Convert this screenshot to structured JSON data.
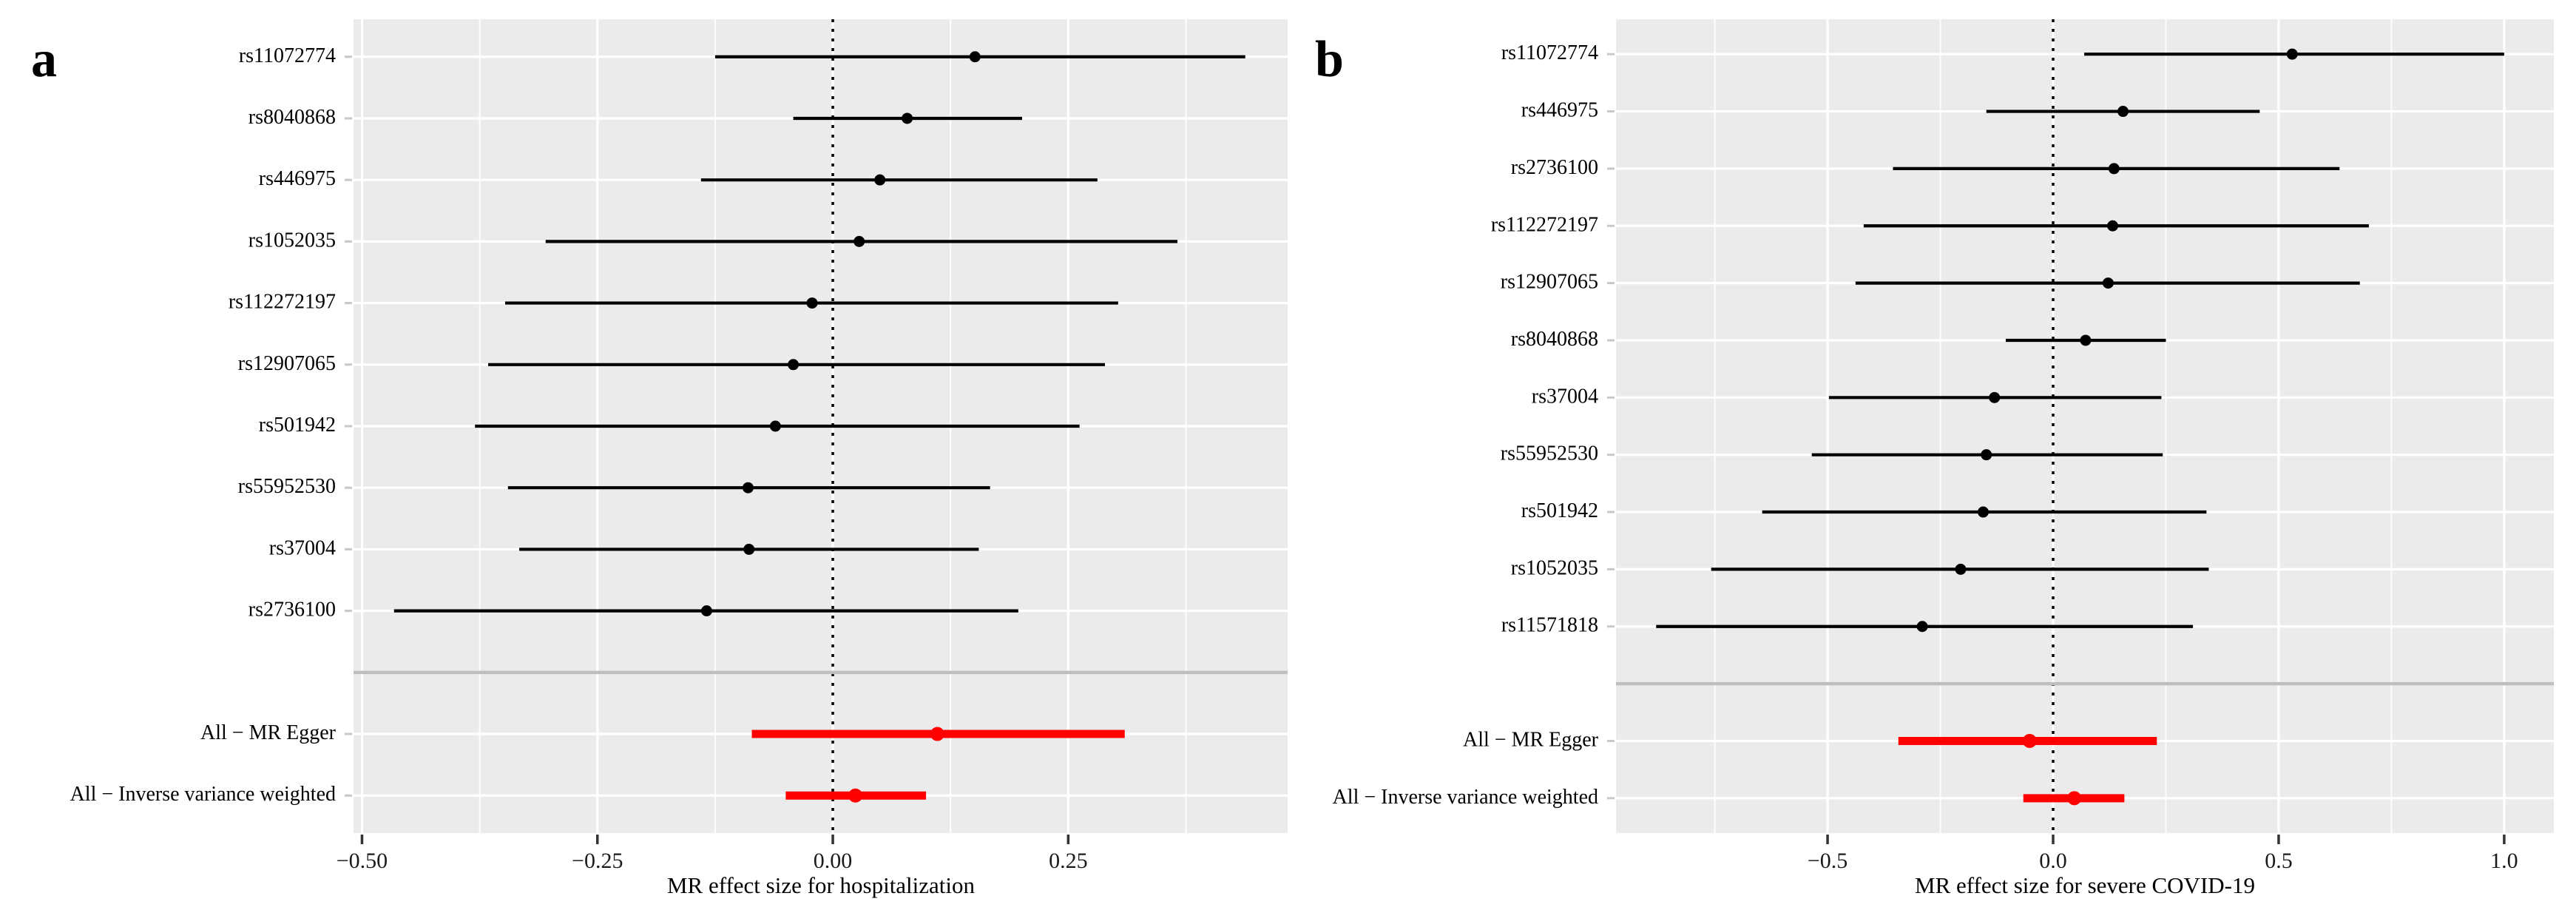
{
  "figure": {
    "colors": {
      "background": "#ffffff",
      "panel_bg": "#ebebeb",
      "grid": "#ffffff",
      "zero_line": "#000000",
      "separator": "#bebebe",
      "snp": "#000000",
      "summary": "#ff0000",
      "x_tick": "#333333",
      "y_tick": "#c8c8c8",
      "tick_label": "#1a1a1a"
    }
  },
  "chart_data": [
    {
      "type": "forest",
      "panel_label": "a",
      "xlabel": "MR effect size for hospitalization",
      "xlim": [
        -0.509,
        0.483
      ],
      "x_ticks": [
        -0.5,
        -0.25,
        0.0,
        0.25
      ],
      "x_tick_labels": [
        "−0.50",
        "−0.25",
        "0.00",
        "0.25"
      ],
      "x_major_step": 0.25,
      "zero_line": 0,
      "grid": true,
      "legend": "none",
      "rows": [
        {
          "label": "rs11072774",
          "group": "snp",
          "est": 0.151,
          "lo": -0.125,
          "hi": 0.438
        },
        {
          "label": "rs8040868",
          "group": "snp",
          "est": 0.079,
          "lo": -0.042,
          "hi": 0.201
        },
        {
          "label": "rs446975",
          "group": "snp",
          "est": 0.05,
          "lo": -0.14,
          "hi": 0.281
        },
        {
          "label": "rs1052035",
          "group": "snp",
          "est": 0.028,
          "lo": -0.305,
          "hi": 0.366
        },
        {
          "label": "rs112272197",
          "group": "snp",
          "est": -0.022,
          "lo": -0.348,
          "hi": 0.303
        },
        {
          "label": "rs12907065",
          "group": "snp",
          "est": -0.042,
          "lo": -0.366,
          "hi": 0.289
        },
        {
          "label": "rs501942",
          "group": "snp",
          "est": -0.061,
          "lo": -0.38,
          "hi": 0.262
        },
        {
          "label": "rs55952530",
          "group": "snp",
          "est": -0.09,
          "lo": -0.345,
          "hi": 0.167
        },
        {
          "label": "rs37004",
          "group": "snp",
          "est": -0.089,
          "lo": -0.333,
          "hi": 0.155
        },
        {
          "label": "rs2736100",
          "group": "snp",
          "est": -0.134,
          "lo": -0.466,
          "hi": 0.197
        },
        {
          "label": "",
          "group": "separator",
          "est": null,
          "lo": null,
          "hi": null
        },
        {
          "label": "All − MR Egger",
          "group": "summary",
          "est": 0.111,
          "lo": -0.086,
          "hi": 0.31
        },
        {
          "label": "All − Inverse variance weighted",
          "group": "summary",
          "est": 0.024,
          "lo": -0.05,
          "hi": 0.099
        }
      ]
    },
    {
      "type": "forest",
      "panel_label": "b",
      "xlabel": "MR effect size for severe COVID-19",
      "xlim": [
        -0.969,
        1.11
      ],
      "x_ticks": [
        -0.5,
        0.0,
        0.5,
        1.0
      ],
      "x_tick_labels": [
        "−0.5",
        "0.0",
        "0.5",
        "1.0"
      ],
      "x_major_step": 0.5,
      "zero_line": 0,
      "grid": true,
      "legend": "none",
      "rows": [
        {
          "label": "rs11072774",
          "group": "snp",
          "est": 0.53,
          "lo": 0.069,
          "hi": 1.0
        },
        {
          "label": "rs446975",
          "group": "snp",
          "est": 0.155,
          "lo": -0.148,
          "hi": 0.458
        },
        {
          "label": "rs2736100",
          "group": "snp",
          "est": 0.135,
          "lo": -0.355,
          "hi": 0.635
        },
        {
          "label": "rs112272197",
          "group": "snp",
          "est": 0.132,
          "lo": -0.42,
          "hi": 0.7
        },
        {
          "label": "rs12907065",
          "group": "snp",
          "est": 0.122,
          "lo": -0.438,
          "hi": 0.68
        },
        {
          "label": "rs8040868",
          "group": "snp",
          "est": 0.072,
          "lo": -0.105,
          "hi": 0.25
        },
        {
          "label": "rs37004",
          "group": "snp",
          "est": -0.13,
          "lo": -0.497,
          "hi": 0.24
        },
        {
          "label": "rs55952530",
          "group": "snp",
          "est": -0.148,
          "lo": -0.535,
          "hi": 0.243
        },
        {
          "label": "rs501942",
          "group": "snp",
          "est": -0.155,
          "lo": -0.645,
          "hi": 0.34
        },
        {
          "label": "rs1052035",
          "group": "snp",
          "est": -0.205,
          "lo": -0.758,
          "hi": 0.345
        },
        {
          "label": "rs11571818",
          "group": "snp",
          "est": -0.29,
          "lo": -0.88,
          "hi": 0.31
        },
        {
          "label": "",
          "group": "separator",
          "est": null,
          "lo": null,
          "hi": null
        },
        {
          "label": "All − MR Egger",
          "group": "summary",
          "est": -0.052,
          "lo": -0.343,
          "hi": 0.23
        },
        {
          "label": "All − Inverse variance weighted",
          "group": "summary",
          "est": 0.047,
          "lo": -0.066,
          "hi": 0.158
        }
      ]
    }
  ]
}
